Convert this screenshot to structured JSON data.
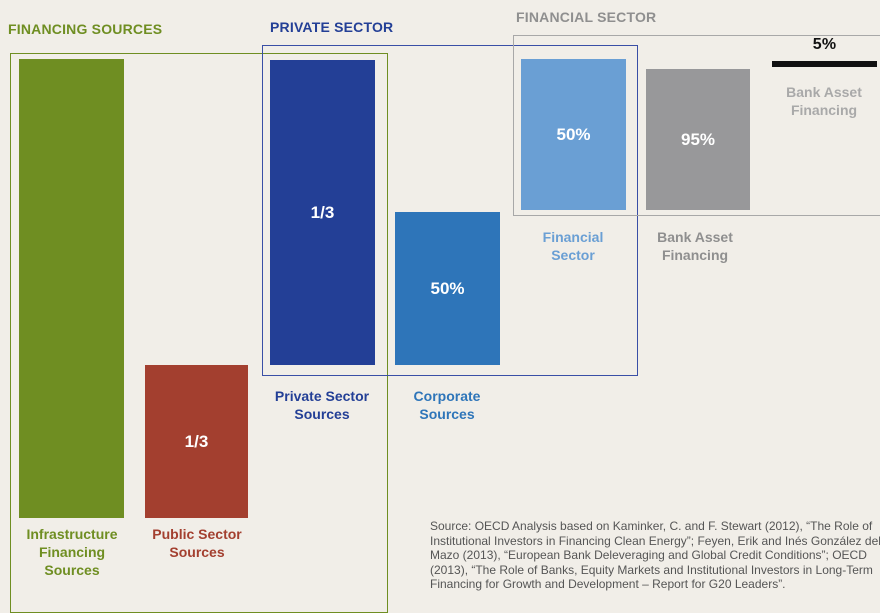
{
  "sections": {
    "financing": {
      "title": "FINANCING SOURCES"
    },
    "private": {
      "title": "PRIVATE SECTOR"
    },
    "financial": {
      "title": "FINANCIAL SECTOR"
    }
  },
  "bars": [
    {
      "label": "",
      "caption": [
        "Infrastructure",
        "Financing",
        "Sources"
      ]
    },
    {
      "label": "1/3",
      "caption": [
        "Public Sector",
        "Sources"
      ]
    },
    {
      "label": "1/3",
      "caption": [
        "Private Sector",
        "Sources"
      ]
    },
    {
      "label": "50%",
      "caption": [
        "Corporate",
        "Sources"
      ]
    },
    {
      "label": "50%",
      "caption": [
        "Financial",
        "Sector"
      ]
    },
    {
      "label": "95%",
      "caption": [
        "Bank Asset",
        "Financing"
      ]
    },
    {
      "label": "5%",
      "caption": [
        "Bank Asset",
        "Financing"
      ]
    }
  ],
  "source": [
    "Source: OECD Analysis based on Kaminker, C. and F. Stewart (2012), “The Role of",
    "Institutional Investors in Financing Clean Energy”; Feyen, Erik and Inés González del",
    "Mazo (2013), “European Bank Deleveraging and Global Credit Conditions”; OECD",
    "(2013), “The Role of Banks, Equity Markets and Institutional Investors in Long-Term",
    "Financing for Growth and Development – Report for G20 Leaders”."
  ]
}
